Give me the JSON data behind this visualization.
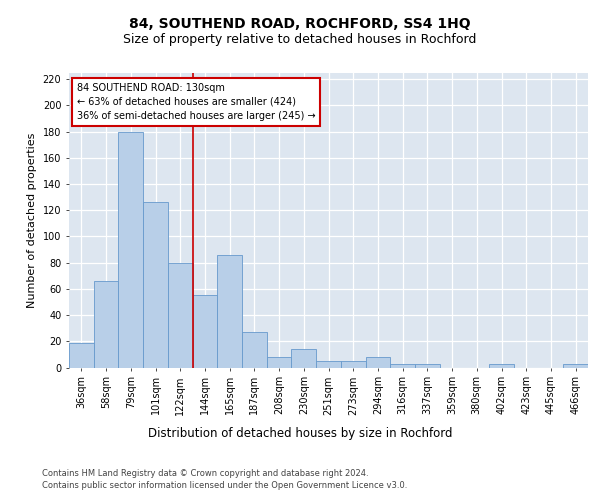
{
  "title": "84, SOUTHEND ROAD, ROCHFORD, SS4 1HQ",
  "subtitle": "Size of property relative to detached houses in Rochford",
  "xlabel": "Distribution of detached houses by size in Rochford",
  "ylabel": "Number of detached properties",
  "footer1": "Contains HM Land Registry data © Crown copyright and database right 2024.",
  "footer2": "Contains public sector information licensed under the Open Government Licence v3.0.",
  "categories": [
    "36sqm",
    "58sqm",
    "79sqm",
    "101sqm",
    "122sqm",
    "144sqm",
    "165sqm",
    "187sqm",
    "208sqm",
    "230sqm",
    "251sqm",
    "273sqm",
    "294sqm",
    "316sqm",
    "337sqm",
    "359sqm",
    "380sqm",
    "402sqm",
    "423sqm",
    "445sqm",
    "466sqm"
  ],
  "values": [
    19,
    66,
    180,
    126,
    80,
    55,
    86,
    27,
    8,
    14,
    5,
    5,
    8,
    3,
    3,
    0,
    0,
    3,
    0,
    0,
    3
  ],
  "bar_color": "#b8cfe8",
  "bar_edge_color": "#6699cc",
  "annotation_line1": "84 SOUTHEND ROAD: 130sqm",
  "annotation_line2": "← 63% of detached houses are smaller (424)",
  "annotation_line3": "36% of semi-detached houses are larger (245) →",
  "annotation_box_color": "#ffffff",
  "annotation_box_edge": "#cc0000",
  "vline_color": "#cc0000",
  "vline_x": 4.5,
  "ylim": [
    0,
    225
  ],
  "yticks": [
    0,
    20,
    40,
    60,
    80,
    100,
    120,
    140,
    160,
    180,
    200,
    220
  ],
  "bg_color": "#dde6f0",
  "grid_color": "#ffffff",
  "fig_bg": "#ffffff",
  "title_fontsize": 10,
  "subtitle_fontsize": 9,
  "ylabel_fontsize": 8,
  "xlabel_fontsize": 8.5,
  "tick_fontsize": 7,
  "annot_fontsize": 7,
  "footer_fontsize": 6
}
